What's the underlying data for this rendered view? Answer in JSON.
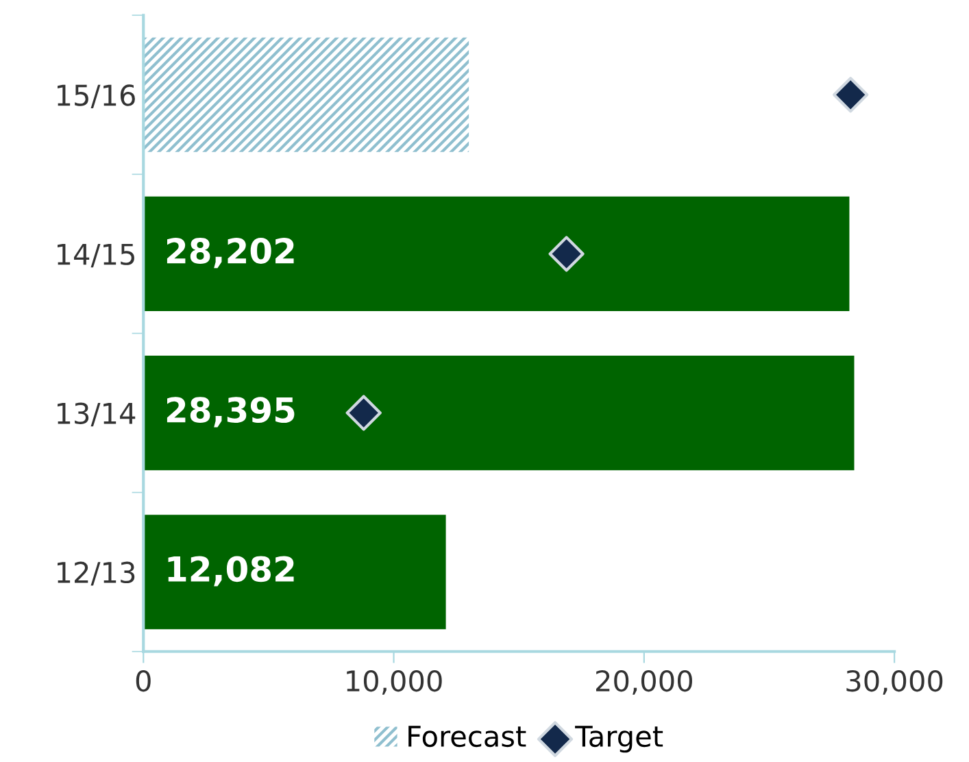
{
  "chart_data": {
    "type": "bar",
    "orientation": "horizontal",
    "categories": [
      "15/16",
      "14/15",
      "13/14",
      "12/13"
    ],
    "series": [
      {
        "color": "#006400",
        "values": [
          null,
          28202,
          28395,
          12082
        ],
        "value_labels": [
          null,
          "28,202",
          "28,395",
          "12,082"
        ]
      },
      {
        "name": "Forecast",
        "color": "#8fbfcf",
        "values": [
          13000,
          null,
          null,
          null
        ]
      },
      {
        "type": "scatter",
        "name": "Target",
        "color": "#13294b",
        "marker": "diamond",
        "values": [
          28250,
          16900,
          8800,
          null
        ]
      }
    ],
    "xlim": [
      0,
      30000
    ],
    "xticks": [
      0,
      {
        "value": 10000,
        "label": "10,000"
      },
      {
        "value": 20000,
        "label": "20,000"
      },
      {
        "value": 30000,
        "label": "30,000"
      }
    ],
    "grid": false,
    "legend": "bottom"
  }
}
